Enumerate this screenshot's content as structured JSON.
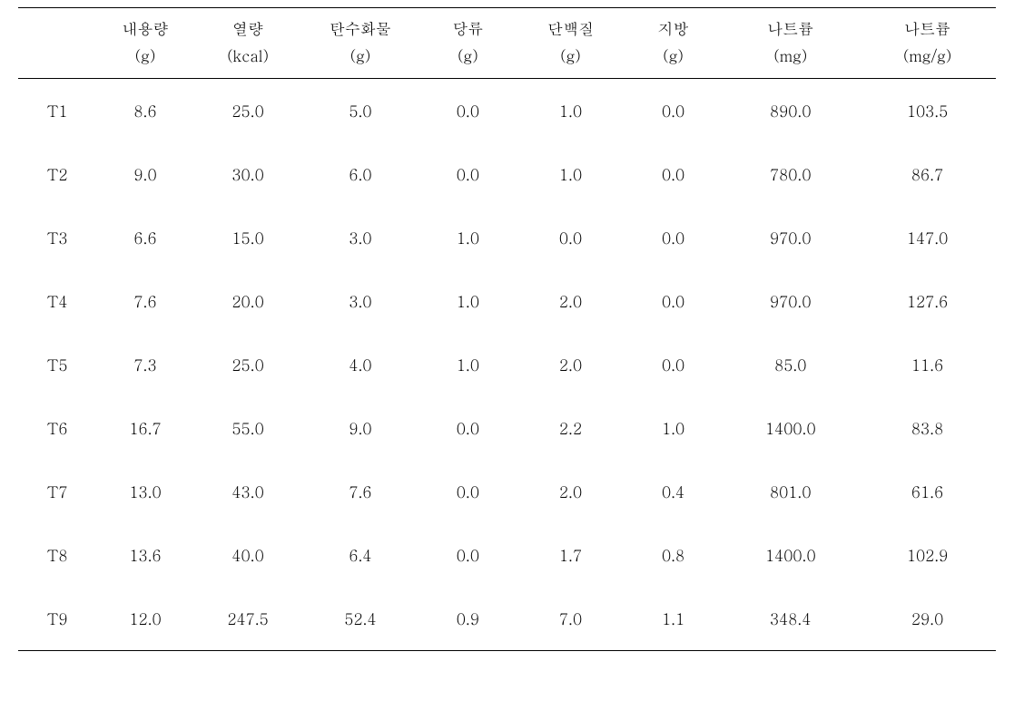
{
  "table": {
    "type": "table",
    "background_color": "#ffffff",
    "text_color": "#000000",
    "border_color": "#000000",
    "font_size": 17,
    "columns": [
      {
        "label": "",
        "unit": "",
        "width": "8%"
      },
      {
        "label": "내용량",
        "unit": "(g)",
        "width": "10%"
      },
      {
        "label": "열량",
        "unit": "(kcal)",
        "width": "11%"
      },
      {
        "label": "탄수화물",
        "unit": "(g)",
        "width": "12%"
      },
      {
        "label": "당류",
        "unit": "(g)",
        "width": "10%"
      },
      {
        "label": "단백질",
        "unit": "(g)",
        "width": "11%"
      },
      {
        "label": "지방",
        "unit": "(g)",
        "width": "10%"
      },
      {
        "label": "나트륨",
        "unit": "(mg)",
        "width": "14%"
      },
      {
        "label": "나트륨",
        "unit": "(mg/g)",
        "width": "14%"
      }
    ],
    "rows": [
      {
        "id": "T1",
        "values": [
          "8.6",
          "25.0",
          "5.0",
          "0.0",
          "1.0",
          "0.0",
          "890.0",
          "103.5"
        ]
      },
      {
        "id": "T2",
        "values": [
          "9.0",
          "30.0",
          "6.0",
          "0.0",
          "1.0",
          "0.0",
          "780.0",
          "86.7"
        ]
      },
      {
        "id": "T3",
        "values": [
          "6.6",
          "15.0",
          "3.0",
          "1.0",
          "0.0",
          "0.0",
          "970.0",
          "147.0"
        ]
      },
      {
        "id": "T4",
        "values": [
          "7.6",
          "20.0",
          "3.0",
          "1.0",
          "2.0",
          "0.0",
          "970.0",
          "127.6"
        ]
      },
      {
        "id": "T5",
        "values": [
          "7.3",
          "25.0",
          "4.0",
          "1.0",
          "2.0",
          "0.0",
          "85.0",
          "11.6"
        ]
      },
      {
        "id": "T6",
        "values": [
          "16.7",
          "55.0",
          "9.0",
          "0.0",
          "2.2",
          "1.0",
          "1400.0",
          "83.8"
        ]
      },
      {
        "id": "T7",
        "values": [
          "13.0",
          "43.0",
          "7.6",
          "0.0",
          "2.0",
          "0.4",
          "801.0",
          "61.6"
        ]
      },
      {
        "id": "T8",
        "values": [
          "13.6",
          "40.0",
          "6.4",
          "0.0",
          "1.7",
          "0.8",
          "1400.0",
          "102.9"
        ]
      },
      {
        "id": "T9",
        "values": [
          "12.0",
          "247.5",
          "52.4",
          "0.9",
          "7.0",
          "1.1",
          "348.4",
          "29.0"
        ]
      }
    ]
  }
}
